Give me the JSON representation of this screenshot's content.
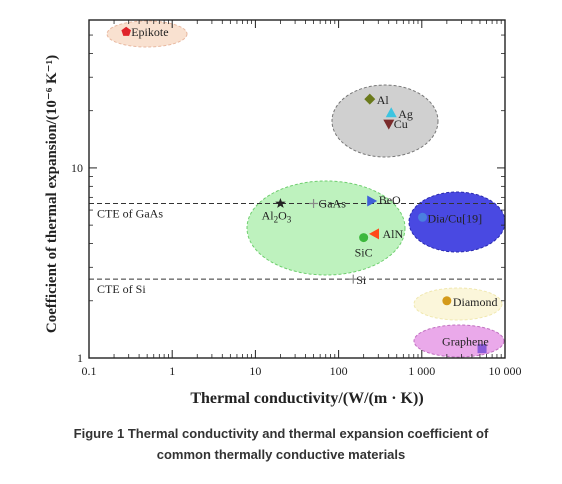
{
  "chart_data": {
    "type": "scatter",
    "xlabel": "Thermal conductivity/(W/(m · K))",
    "ylabel": "Coefficient of thermal expansion/(10⁻⁶ K⁻¹)",
    "x_scale": "log",
    "y_scale": "log",
    "xlim": [
      0.1,
      10000
    ],
    "ylim": [
      1,
      60
    ],
    "x_ticks": [
      {
        "value": 0.1,
        "label": "0.1"
      },
      {
        "value": 1,
        "label": "1"
      },
      {
        "value": 10,
        "label": "10"
      },
      {
        "value": 100,
        "label": "100"
      },
      {
        "value": 1000,
        "label": "1 000"
      },
      {
        "value": 10000,
        "label": "10 000"
      }
    ],
    "y_ticks": [
      {
        "value": 1,
        "label": "1"
      },
      {
        "value": 10,
        "label": "10"
      }
    ],
    "reference_lines": [
      {
        "label": "CTE of GaAs",
        "y": 6.5
      },
      {
        "label": "CTE of Si",
        "y": 2.6
      }
    ],
    "points": [
      {
        "label": "Epikote",
        "x": 0.28,
        "y": 52,
        "marker": "pentagon",
        "color": "#e0242b"
      },
      {
        "label": "Al",
        "x": 237,
        "y": 23,
        "marker": "diamond",
        "color": "#6b7a1c"
      },
      {
        "label": "Ag",
        "x": 429,
        "y": 19.5,
        "marker": "triangle-up",
        "color": "#3cc4e0"
      },
      {
        "label": "Cu",
        "x": 401,
        "y": 17,
        "marker": "triangle-down",
        "color": "#7a2b2b"
      },
      {
        "label": "Al2O3",
        "x": 20,
        "y": 6.5,
        "marker": "star",
        "color": "#222222"
      },
      {
        "label": "GaAs",
        "x": 50,
        "y": 6.5,
        "marker": "plus",
        "color": "#888888"
      },
      {
        "label": "BeO",
        "x": 250,
        "y": 6.7,
        "marker": "triangle-right",
        "color": "#3f5fd8"
      },
      {
        "label": "AlN",
        "x": 270,
        "y": 4.5,
        "marker": "triangle-left",
        "color": "#ff4a1a"
      },
      {
        "label": "SiC",
        "x": 200,
        "y": 4.3,
        "marker": "circle",
        "color": "#3cb83c"
      },
      {
        "label": "Si",
        "x": 150,
        "y": 2.6,
        "marker": "plus",
        "color": "#888888"
      },
      {
        "label": "Dia/Cu[19]",
        "x": 1020,
        "y": 5.5,
        "marker": "circle",
        "color": "#4a7fe0"
      },
      {
        "label": "Diamond",
        "x": 2000,
        "y": 2.0,
        "marker": "circle",
        "color": "#d49a1a"
      },
      {
        "label": "Graphene",
        "x": 5300,
        "y": 1.12,
        "marker": "square",
        "color": "#8a5bd8"
      }
    ],
    "regions": [
      {
        "name": "polymer",
        "color": "#f7d9c4"
      },
      {
        "name": "metal",
        "color": "#c8c8c8"
      },
      {
        "name": "ceramic",
        "color": "#a8eea8"
      },
      {
        "name": "composite",
        "color": "#3f3fe0"
      },
      {
        "name": "diamond",
        "color": "#fbf5d6"
      },
      {
        "name": "graphene",
        "color": "#e8a0e8"
      }
    ]
  },
  "caption": {
    "line1": "Figure 1 Thermal conductivity and thermal expansion coefficient of",
    "line2": "common thermally conductive materials"
  }
}
